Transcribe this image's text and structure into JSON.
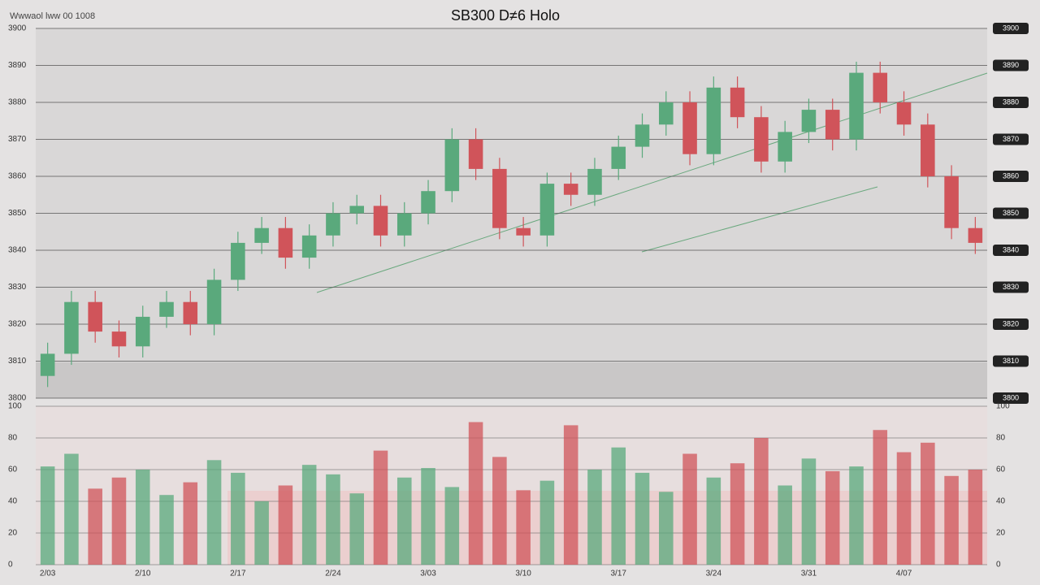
{
  "chart_data": {
    "type": "candlestick",
    "title": "SB300 D≠6 Holo",
    "subtitle": "Wwwaol lww 00 1008",
    "categories": [
      "2/03",
      null,
      null,
      null,
      "2/10",
      null,
      null,
      null,
      "2/17",
      null,
      null,
      null,
      "2/24",
      null,
      null,
      null,
      "3/03",
      null,
      null,
      null,
      "3/10",
      null,
      null,
      null,
      "3/17",
      null,
      null,
      null,
      "3/24",
      null,
      null,
      null,
      "3/31",
      null,
      null,
      null,
      "4/07",
      null,
      null,
      null
    ],
    "open": [
      3806,
      3812,
      3826,
      3818,
      3814,
      3822,
      3826,
      3820,
      3832,
      3842,
      3846,
      3838,
      3844,
      3850,
      3852,
      3844,
      3850,
      3856,
      3870,
      3862,
      3846,
      3844,
      3858,
      3855,
      3862,
      3868,
      3874,
      3880,
      3866,
      3884,
      3876,
      3864,
      3872,
      3878,
      3870,
      3888,
      3880,
      3874,
      3860,
      3846
    ],
    "high": [
      3815,
      3829,
      3829,
      3821,
      3825,
      3829,
      3829,
      3835,
      3845,
      3849,
      3849,
      3847,
      3853,
      3855,
      3855,
      3853,
      3859,
      3873,
      3873,
      3865,
      3849,
      3861,
      3861,
      3865,
      3871,
      3877,
      3883,
      3883,
      3887,
      3887,
      3879,
      3875,
      3881,
      3881,
      3891,
      3891,
      3883,
      3877,
      3863,
      3849
    ],
    "low": [
      3803,
      3809,
      3815,
      3811,
      3811,
      3819,
      3817,
      3817,
      3829,
      3839,
      3835,
      3835,
      3841,
      3847,
      3841,
      3841,
      3847,
      3853,
      3859,
      3843,
      3841,
      3841,
      3852,
      3852,
      3859,
      3865,
      3871,
      3863,
      3863,
      3873,
      3861,
      3861,
      3869,
      3867,
      3867,
      3877,
      3871,
      3857,
      3843,
      3839
    ],
    "close": [
      3812,
      3826,
      3818,
      3814,
      3822,
      3826,
      3820,
      3832,
      3842,
      3846,
      3838,
      3844,
      3850,
      3852,
      3844,
      3850,
      3856,
      3870,
      3862,
      3846,
      3844,
      3858,
      3855,
      3862,
      3868,
      3874,
      3880,
      3866,
      3884,
      3876,
      3864,
      3872,
      3878,
      3870,
      3888,
      3880,
      3874,
      3860,
      3846,
      3842
    ],
    "up_color": "#5aa97c",
    "down_color": "#d0545a",
    "ylim": [
      3800,
      3900
    ],
    "yticks": [
      3800,
      3810,
      3820,
      3830,
      3840,
      3850,
      3860,
      3870,
      3880,
      3890,
      3900
    ],
    "volume": [
      62,
      70,
      48,
      55,
      60,
      44,
      52,
      66,
      58,
      40,
      50,
      63,
      57,
      45,
      72,
      55,
      61,
      49,
      90,
      68,
      47,
      53,
      88,
      60,
      74,
      58,
      46,
      70,
      55,
      64,
      80,
      50,
      67,
      59,
      62,
      85,
      71,
      77,
      56,
      60
    ],
    "volume_ylim": [
      0,
      100
    ],
    "volume_yticks": [
      0,
      20,
      40,
      60,
      80,
      100
    ],
    "grid": true
  }
}
